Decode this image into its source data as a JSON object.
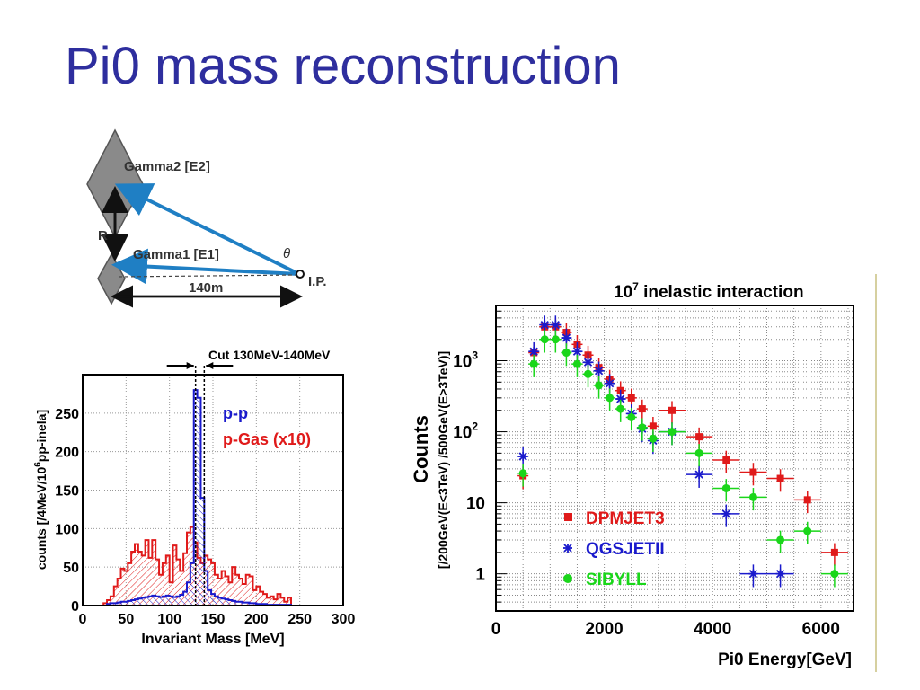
{
  "slide": {
    "title": "Pi0 mass reconstruction"
  },
  "diagram": {
    "gamma2_label": "Gamma2 [E2]",
    "gamma1_label": "Gamma1 [E1]",
    "r_label": "R",
    "theta_label": "θ",
    "distance_label": "140m",
    "ip_label": "I.P."
  },
  "chart_data": [
    {
      "type": "histogram",
      "title": "",
      "cut_label": "Cut 130MeV-140MeV",
      "xlabel": "Invariant Mass [MeV]",
      "ylabel_prefix": "counts [/4MeV/10",
      "ylabel_sup": "6",
      "ylabel_suffix": "pp-inela]",
      "xlim": [
        0,
        300
      ],
      "ylim": [
        0,
        300
      ],
      "x_ticks": [
        0,
        50,
        100,
        150,
        200,
        250,
        300
      ],
      "y_ticks": [
        0,
        50,
        100,
        150,
        200,
        250
      ],
      "grid": true,
      "bin_width": 4,
      "x_start": 0,
      "series": [
        {
          "name": "p-p",
          "color": "#1a1acc",
          "values": [
            0,
            0,
            0,
            0,
            0,
            0,
            0,
            2,
            3,
            3,
            4,
            5,
            5,
            6,
            7,
            8,
            9,
            10,
            11,
            12,
            13,
            12,
            11,
            12,
            13,
            12,
            11,
            12,
            14,
            18,
            30,
            55,
            280,
            270,
            140,
            45,
            20,
            15,
            12,
            10,
            9,
            8,
            7,
            6,
            5,
            5,
            4,
            4,
            3,
            3,
            2,
            2,
            2,
            1,
            1,
            1,
            1,
            1,
            1,
            1,
            0,
            0,
            0,
            0,
            0,
            0,
            0,
            0,
            0,
            0,
            0,
            0,
            0,
            0,
            0
          ]
        },
        {
          "name": "p-Gas (x10)",
          "color": "#e01a1a",
          "values": [
            0,
            0,
            0,
            0,
            0,
            0,
            3,
            7,
            12,
            25,
            35,
            48,
            45,
            55,
            70,
            80,
            70,
            65,
            85,
            62,
            85,
            60,
            40,
            55,
            65,
            30,
            78,
            60,
            45,
            68,
            95,
            102,
            82,
            62,
            55,
            65,
            60,
            55,
            40,
            35,
            45,
            38,
            30,
            50,
            40,
            35,
            28,
            40,
            38,
            20,
            25,
            18,
            15,
            10,
            12,
            8,
            15,
            10,
            5,
            10,
            0,
            0,
            0,
            0,
            0,
            0,
            0,
            0,
            0,
            0,
            0,
            0,
            0,
            0,
            0
          ]
        }
      ],
      "cut_range": [
        130,
        140
      ]
    },
    {
      "type": "scatter",
      "title_base": "10",
      "title_sup": "7",
      "title_rest": " inelastic interaction",
      "xlabel": "Pi0 Energy[GeV]",
      "ylabel_main": "Counts",
      "ylabel_sub": "[/200GeV(E<3TeV) /500GeV(E>3TeV)]",
      "x_scale": "linear",
      "y_scale": "log",
      "xlim": [
        0,
        6600
      ],
      "ylim": [
        0.3,
        6000
      ],
      "x_ticks": [
        0,
        2000,
        4000,
        6000
      ],
      "y_ticks": [
        {
          "value": 1,
          "label": "1"
        },
        {
          "value": 10,
          "label": "10"
        },
        {
          "value": 100,
          "label": "10",
          "sup": "2"
        },
        {
          "value": 1000,
          "label": "10",
          "sup": "3"
        }
      ],
      "grid": true,
      "legend_position": "bottom-center",
      "series": [
        {
          "name": "DPMJET3",
          "color": "#e01a1a",
          "marker": "square",
          "points": [
            {
              "x": 500,
              "y": 24,
              "xerr": 100
            },
            {
              "x": 700,
              "y": 1300,
              "xerr": 100
            },
            {
              "x": 900,
              "y": 3000,
              "xerr": 100
            },
            {
              "x": 1100,
              "y": 3000,
              "xerr": 100
            },
            {
              "x": 1300,
              "y": 2500,
              "xerr": 100
            },
            {
              "x": 1500,
              "y": 1700,
              "xerr": 100
            },
            {
              "x": 1700,
              "y": 1200,
              "xerr": 100
            },
            {
              "x": 1900,
              "y": 800,
              "xerr": 100
            },
            {
              "x": 2100,
              "y": 550,
              "xerr": 100
            },
            {
              "x": 2300,
              "y": 380,
              "xerr": 100
            },
            {
              "x": 2500,
              "y": 300,
              "xerr": 100
            },
            {
              "x": 2700,
              "y": 210,
              "xerr": 100
            },
            {
              "x": 2900,
              "y": 120,
              "xerr": 100
            },
            {
              "x": 3250,
              "y": 200,
              "xerr": 250
            },
            {
              "x": 3750,
              "y": 85,
              "xerr": 250
            },
            {
              "x": 4250,
              "y": 40,
              "xerr": 250
            },
            {
              "x": 4750,
              "y": 27,
              "xerr": 250
            },
            {
              "x": 5250,
              "y": 22,
              "xerr": 250
            },
            {
              "x": 5750,
              "y": 11,
              "xerr": 250
            },
            {
              "x": 6250,
              "y": 2,
              "xerr": 250
            }
          ]
        },
        {
          "name": "QGSJETII",
          "color": "#1a1acc",
          "marker": "star",
          "points": [
            {
              "x": 500,
              "y": 45,
              "xerr": 100
            },
            {
              "x": 700,
              "y": 1350,
              "xerr": 100
            },
            {
              "x": 900,
              "y": 3200,
              "xerr": 100
            },
            {
              "x": 1100,
              "y": 3200,
              "xerr": 100
            },
            {
              "x": 1300,
              "y": 2100,
              "xerr": 100
            },
            {
              "x": 1500,
              "y": 1350,
              "xerr": 100
            },
            {
              "x": 1700,
              "y": 950,
              "xerr": 100
            },
            {
              "x": 1900,
              "y": 720,
              "xerr": 100
            },
            {
              "x": 2100,
              "y": 480,
              "xerr": 100
            },
            {
              "x": 2300,
              "y": 290,
              "xerr": 100
            },
            {
              "x": 2500,
              "y": 180,
              "xerr": 100
            },
            {
              "x": 2700,
              "y": 110,
              "xerr": 100
            },
            {
              "x": 2900,
              "y": 75,
              "xerr": 100
            },
            {
              "x": 3250,
              "y": 100,
              "xerr": 250
            },
            {
              "x": 3750,
              "y": 25,
              "xerr": 250
            },
            {
              "x": 4250,
              "y": 7,
              "xerr": 250
            },
            {
              "x": 4750,
              "y": 1,
              "xerr": 250
            },
            {
              "x": 5250,
              "y": 1,
              "xerr": 250
            }
          ]
        },
        {
          "name": "SIBYLL",
          "color": "#1ad61a",
          "marker": "circle",
          "points": [
            {
              "x": 500,
              "y": 26,
              "xerr": 100
            },
            {
              "x": 700,
              "y": 900,
              "xerr": 100
            },
            {
              "x": 900,
              "y": 2000,
              "xerr": 100
            },
            {
              "x": 1100,
              "y": 2000,
              "xerr": 100
            },
            {
              "x": 1300,
              "y": 1300,
              "xerr": 100
            },
            {
              "x": 1500,
              "y": 900,
              "xerr": 100
            },
            {
              "x": 1700,
              "y": 650,
              "xerr": 100
            },
            {
              "x": 1900,
              "y": 450,
              "xerr": 100
            },
            {
              "x": 2100,
              "y": 300,
              "xerr": 100
            },
            {
              "x": 2300,
              "y": 210,
              "xerr": 100
            },
            {
              "x": 2500,
              "y": 160,
              "xerr": 100
            },
            {
              "x": 2700,
              "y": 115,
              "xerr": 100
            },
            {
              "x": 2900,
              "y": 80,
              "xerr": 100
            },
            {
              "x": 3250,
              "y": 100,
              "xerr": 250
            },
            {
              "x": 3750,
              "y": 50,
              "xerr": 250
            },
            {
              "x": 4250,
              "y": 16,
              "xerr": 250
            },
            {
              "x": 4750,
              "y": 12,
              "xerr": 250
            },
            {
              "x": 5250,
              "y": 3,
              "xerr": 250
            },
            {
              "x": 5750,
              "y": 4,
              "xerr": 250
            },
            {
              "x": 6250,
              "y": 1,
              "xerr": 250
            }
          ]
        }
      ]
    }
  ]
}
